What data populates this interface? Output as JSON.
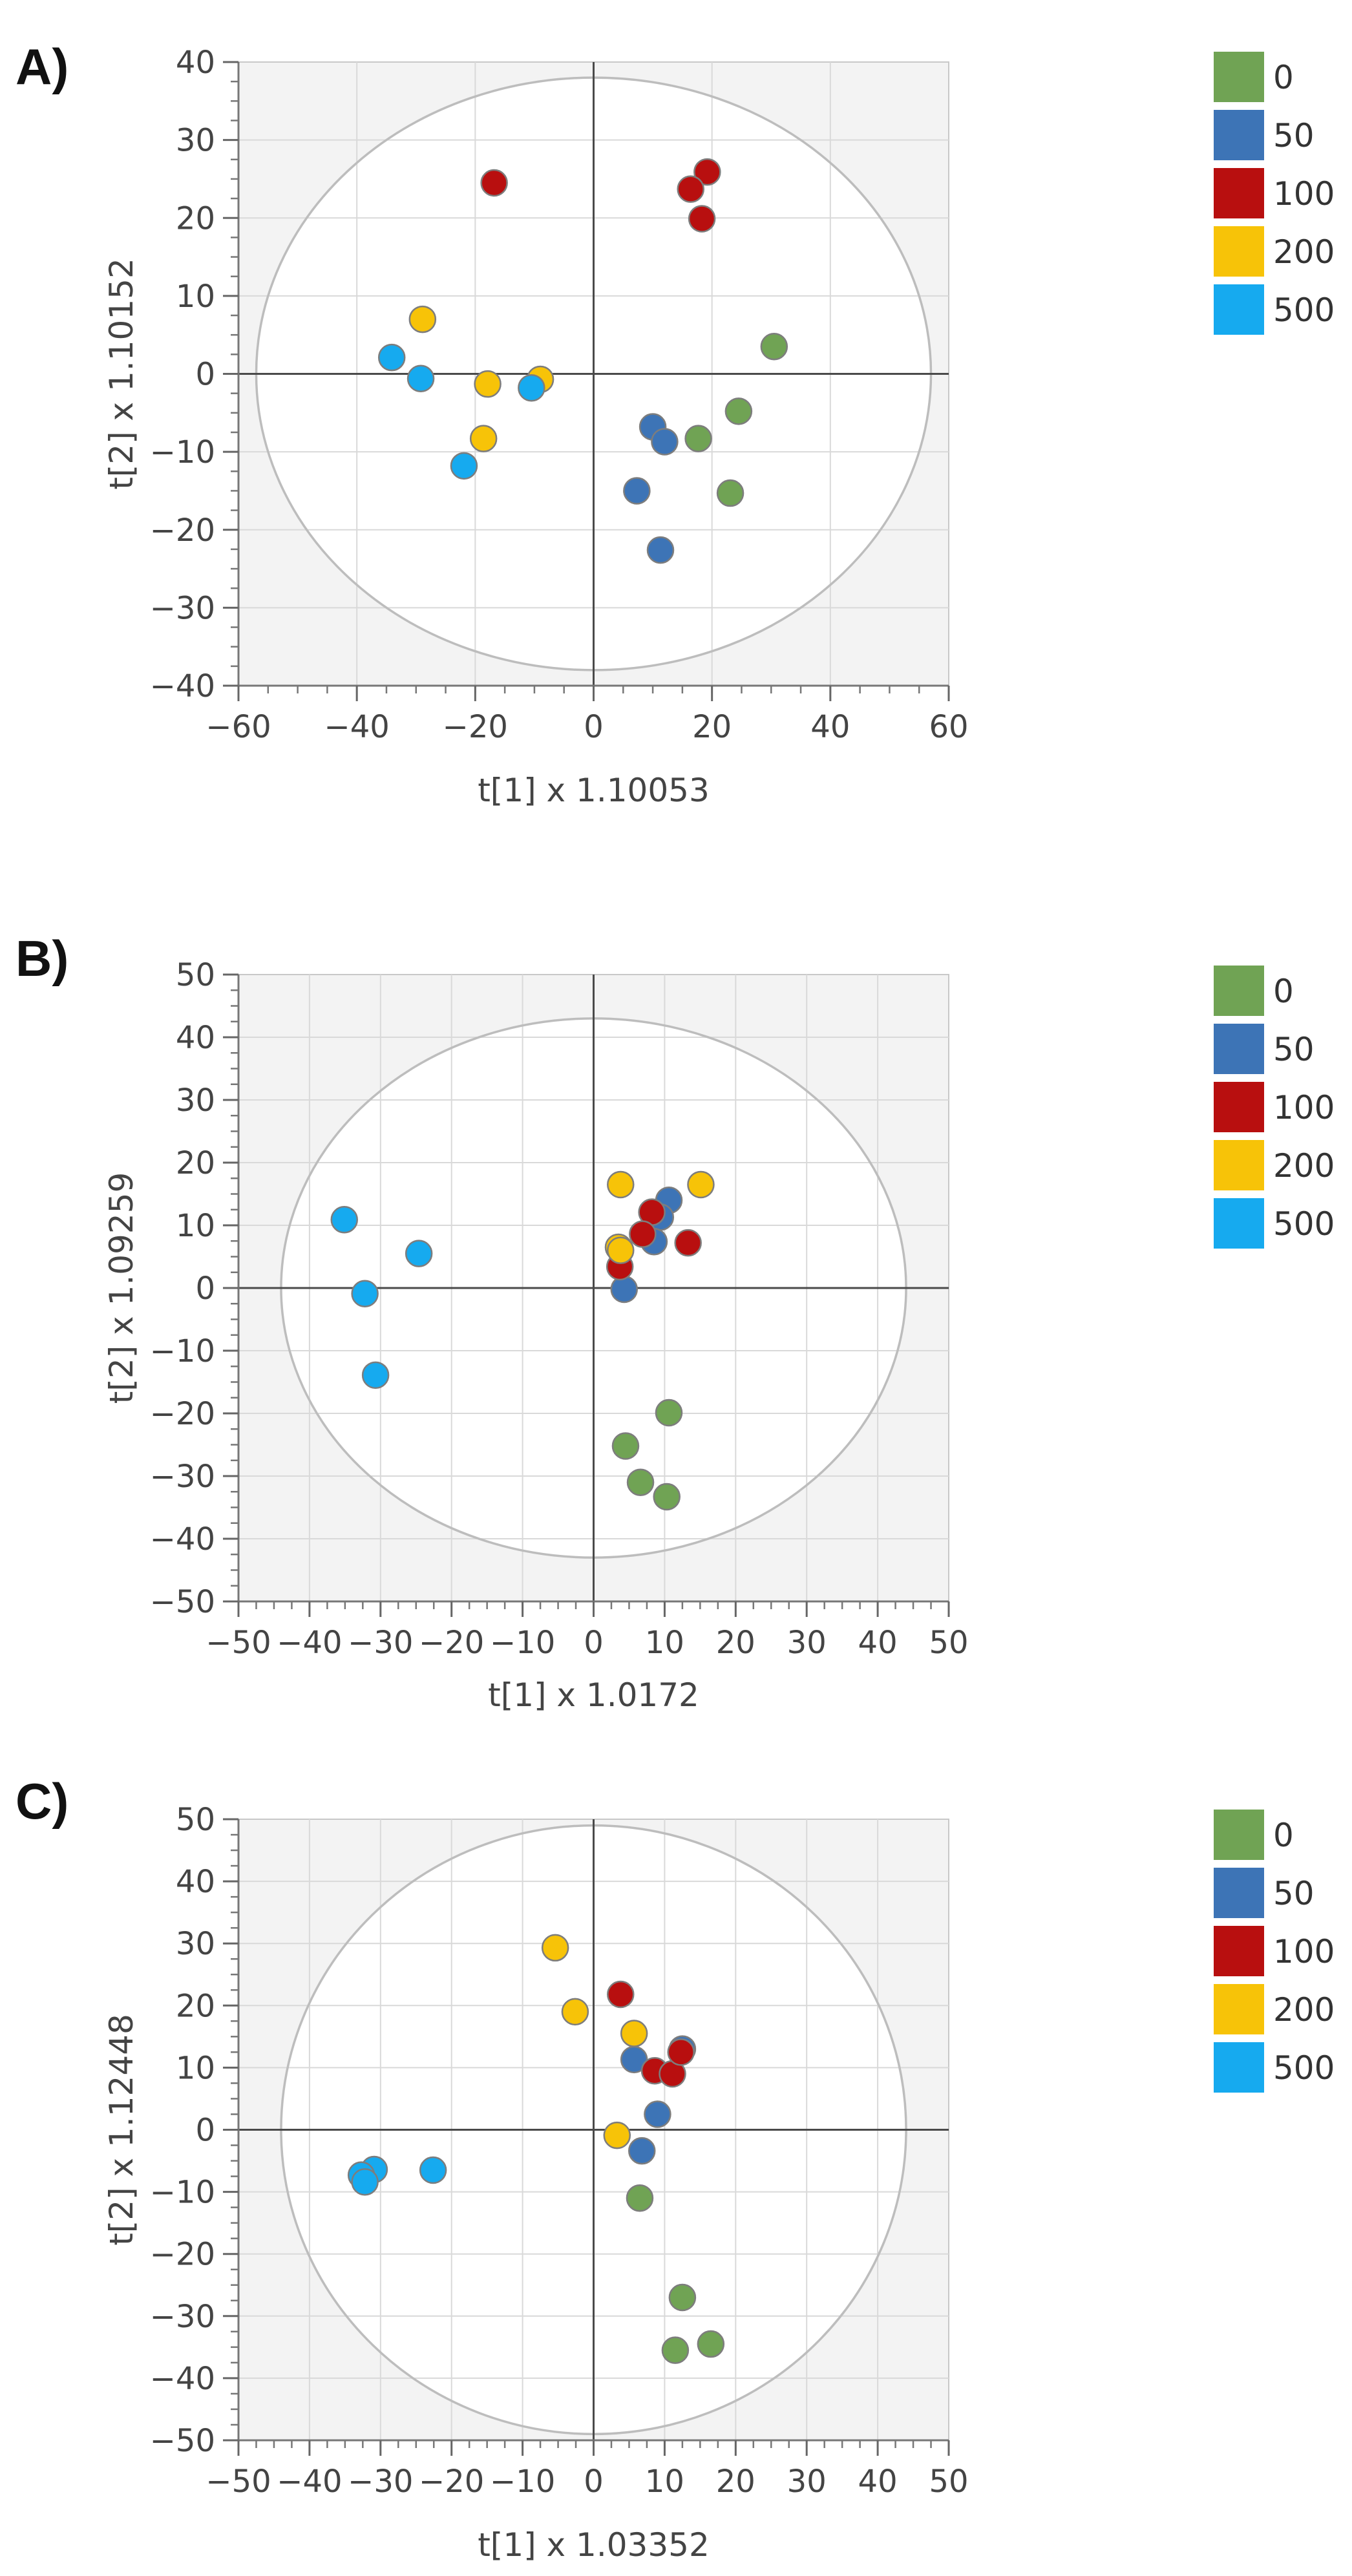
{
  "legend": {
    "entries": [
      {
        "label": "0",
        "color": "#70a354"
      },
      {
        "label": "50",
        "color": "#3d74b6"
      },
      {
        "label": "100",
        "color": "#b80f0f"
      },
      {
        "label": "200",
        "color": "#f7c308"
      },
      {
        "label": "500",
        "color": "#16aaef"
      }
    ]
  },
  "chart_data": [
    {
      "panel": "A)",
      "type": "scatter",
      "xlabel": "t[1]  x 1.10053",
      "ylabel": "t[2] x 1.10152",
      "xlim": [
        -60,
        60
      ],
      "ylim": [
        -40,
        40
      ],
      "xticks": [
        -60,
        -40,
        -20,
        0,
        20,
        40,
        60
      ],
      "yticks": [
        -40,
        -30,
        -20,
        -10,
        0,
        10,
        20,
        30,
        40
      ],
      "ellipse": {
        "rx": 57,
        "ry": 38
      },
      "series": [
        {
          "name": "0",
          "color": "#70a354",
          "points": [
            [
              30.5,
              3.5
            ],
            [
              24.5,
              -4.8
            ],
            [
              17.7,
              -8.3
            ],
            [
              23.1,
              -15.3
            ]
          ]
        },
        {
          "name": "50",
          "color": "#3d74b6",
          "points": [
            [
              10.0,
              -6.8
            ],
            [
              12.0,
              -8.7
            ],
            [
              7.3,
              -15.0
            ],
            [
              11.3,
              -22.6
            ]
          ]
        },
        {
          "name": "100",
          "color": "#b80f0f",
          "points": [
            [
              19.2,
              25.9
            ],
            [
              16.4,
              23.7
            ],
            [
              18.3,
              19.9
            ],
            [
              -16.8,
              24.5
            ]
          ]
        },
        {
          "name": "200",
          "color": "#f7c308",
          "points": [
            [
              -28.9,
              7.0
            ],
            [
              -17.9,
              -1.3
            ],
            [
              -9.0,
              -0.7
            ],
            [
              -18.6,
              -8.3
            ]
          ]
        },
        {
          "name": "500",
          "color": "#16aaef",
          "points": [
            [
              -34.1,
              2.1
            ],
            [
              -29.2,
              -0.6
            ],
            [
              -10.5,
              -1.8
            ],
            [
              -21.9,
              -11.8
            ]
          ]
        }
      ]
    },
    {
      "panel": "B)",
      "type": "scatter",
      "xlabel": "t[1] x 1.0172",
      "ylabel": "t[2] x 1.09259",
      "xlim": [
        -50,
        50
      ],
      "ylim": [
        -50,
        50
      ],
      "xticks": [
        -50,
        -40,
        -30,
        -20,
        -10,
        0,
        10,
        20,
        30,
        40,
        50
      ],
      "yticks": [
        -50,
        -40,
        -30,
        -20,
        -10,
        0,
        10,
        20,
        30,
        40,
        50
      ],
      "ellipse": {
        "rx": 44,
        "ry": 43
      },
      "series": [
        {
          "name": "0",
          "color": "#70a354",
          "points": [
            [
              10.6,
              -19.9
            ],
            [
              4.5,
              -25.2
            ],
            [
              6.6,
              -31.0
            ],
            [
              10.3,
              -33.3
            ]
          ]
        },
        {
          "name": "50",
          "color": "#3d74b6",
          "points": [
            [
              10.6,
              14.0
            ],
            [
              9.4,
              11.3
            ],
            [
              8.5,
              7.4
            ],
            [
              4.3,
              -0.2
            ]
          ]
        },
        {
          "name": "100",
          "color": "#b80f0f",
          "points": [
            [
              8.2,
              12.1
            ],
            [
              6.9,
              8.6
            ],
            [
              13.3,
              7.2
            ],
            [
              3.7,
              3.4
            ]
          ]
        },
        {
          "name": "200",
          "color": "#f7c308",
          "points": [
            [
              3.8,
              16.5
            ],
            [
              15.1,
              16.5
            ],
            [
              3.5,
              6.5
            ],
            [
              3.8,
              6.0
            ]
          ]
        },
        {
          "name": "500",
          "color": "#16aaef",
          "points": [
            [
              -35.1,
              10.9
            ],
            [
              -24.6,
              5.5
            ],
            [
              -32.2,
              -0.9
            ],
            [
              -30.7,
              -13.9
            ]
          ]
        }
      ]
    },
    {
      "panel": "C)",
      "type": "scatter",
      "xlabel": "t[1] x 1.03352",
      "ylabel": "t[2] x 1.12448",
      "xlim": [
        -50,
        50
      ],
      "ylim": [
        -50,
        50
      ],
      "xticks": [
        -50,
        -40,
        -30,
        -20,
        -10,
        0,
        10,
        20,
        30,
        40,
        50
      ],
      "yticks": [
        -50,
        -40,
        -30,
        -20,
        -10,
        0,
        10,
        20,
        30,
        40,
        50
      ],
      "ellipse": {
        "rx": 44,
        "ry": 49
      },
      "series": [
        {
          "name": "0",
          "color": "#70a354",
          "points": [
            [
              6.5,
              -11.0
            ],
            [
              12.5,
              -27.0
            ],
            [
              16.5,
              -34.5
            ],
            [
              11.5,
              -35.5
            ]
          ]
        },
        {
          "name": "50",
          "color": "#3d74b6",
          "points": [
            [
              12.5,
              13.0
            ],
            [
              5.7,
              11.3
            ],
            [
              9.0,
              2.5
            ],
            [
              6.8,
              -3.4
            ]
          ]
        },
        {
          "name": "100",
          "color": "#b80f0f",
          "points": [
            [
              3.8,
              21.8
            ],
            [
              8.6,
              9.5
            ],
            [
              11.1,
              9.0
            ],
            [
              12.3,
              12.5
            ]
          ]
        },
        {
          "name": "200",
          "color": "#f7c308",
          "points": [
            [
              -5.4,
              29.3
            ],
            [
              -2.6,
              19.0
            ],
            [
              5.7,
              15.5
            ],
            [
              3.3,
              -0.9
            ]
          ]
        },
        {
          "name": "500",
          "color": "#16aaef",
          "points": [
            [
              -22.6,
              -6.5
            ],
            [
              -30.9,
              -6.4
            ],
            [
              -32.7,
              -7.3
            ],
            [
              -32.2,
              -8.4
            ]
          ]
        }
      ]
    }
  ]
}
